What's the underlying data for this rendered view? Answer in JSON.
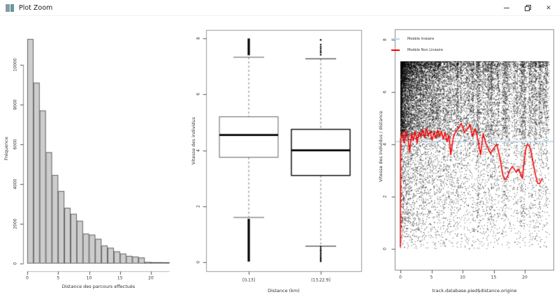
{
  "window": {
    "title": "Plot Zoom",
    "controls": {
      "minimize_label": "",
      "restore_label": "",
      "close_label": "✕"
    }
  },
  "chart_data": [
    {
      "type": "bar",
      "subtype": "histogram",
      "xlabel": "Distance des parcours effectués",
      "ylabel": "Fréquence",
      "bin_start": 0,
      "bin_width": 1,
      "values": [
        11300,
        9100,
        7700,
        5600,
        4450,
        3650,
        2800,
        2500,
        2150,
        1500,
        1450,
        1240,
        900,
        790,
        610,
        500,
        380,
        350,
        300,
        80,
        70,
        70,
        60
      ],
      "xticks": [
        0,
        5,
        10,
        15,
        20
      ],
      "yticks": [
        0,
        2000,
        4000,
        6000,
        8000,
        10000
      ],
      "xlim": [
        0,
        23
      ],
      "ylim": [
        0,
        11300
      ],
      "bar_fill": "#cdcdcd",
      "bar_stroke": "#4a4a4a",
      "grid": false
    },
    {
      "type": "boxplot",
      "xlabel": "Distance (km)",
      "ylabel": "Vitesse des individus",
      "yticks": [
        0,
        2,
        4,
        6,
        8
      ],
      "ylim": [
        0,
        8
      ],
      "groups": [
        {
          "label": "[0,13]",
          "q1": 3.75,
          "median": 4.55,
          "q3": 5.2,
          "whisker_low": 1.6,
          "whisker_high": 7.33,
          "outlier_band_high": [
            7.4,
            8.0
          ],
          "outlier_band_low": [
            0.02,
            1.55
          ],
          "box_color": "#6e6e6e"
        },
        {
          "label": "(13,22.9]",
          "q1": 3.1,
          "median": 4.0,
          "q3": 4.75,
          "whisker_low": 0.57,
          "whisker_high": 7.27,
          "outliers_high": [
            7.42,
            7.5,
            7.56,
            7.63,
            7.7,
            7.78,
            7.95
          ],
          "outliers_low": [
            0.03,
            0.08,
            0.13,
            0.18,
            0.24,
            0.3,
            0.36,
            0.42,
            0.48,
            0.55
          ],
          "box_color": "#000000"
        }
      ],
      "median_color": "#000000",
      "whisker_style": "dashed",
      "grid": false
    },
    {
      "type": "scatter",
      "xlabel": "track.database.pied$distance.origine",
      "ylabel": "Vitesse des individus / distance",
      "xticks": [
        0,
        5,
        10,
        15,
        20
      ],
      "yticks": [
        0,
        2,
        4,
        6,
        8
      ],
      "xlim": [
        0,
        23.5
      ],
      "ylim": [
        0,
        8
      ],
      "points": {
        "color": "#000000",
        "approx_count": 19000,
        "x_range": [
          0,
          23.5
        ],
        "y_range": [
          0,
          7.17
        ],
        "distribution": "very dense cloud at x 0-8 between y 4-7, thinning to striped vertical columns toward x 23",
        "seed": 7,
        "n_core": 11000,
        "n_spread": 7600
      },
      "linear_model": {
        "label": "Modèle linéaire",
        "color": "#b5d7e8",
        "y": 4.1
      },
      "loess": {
        "label": "Modèle Non Linéaire",
        "color": "#ff0000",
        "points": [
          [
            0,
            0.08
          ],
          [
            0.03,
            4.2
          ],
          [
            0.3,
            4.45
          ],
          [
            0.6,
            4.05
          ],
          [
            0.9,
            4.5
          ],
          [
            1.2,
            4.3
          ],
          [
            1.5,
            3.7
          ],
          [
            1.8,
            4.4
          ],
          [
            2.1,
            4.15
          ],
          [
            2.4,
            4.5
          ],
          [
            2.7,
            4.05
          ],
          [
            3,
            4.45
          ],
          [
            3.3,
            4.3
          ],
          [
            3.6,
            4.55
          ],
          [
            3.9,
            4.25
          ],
          [
            4.2,
            4.6
          ],
          [
            4.5,
            4.35
          ],
          [
            4.8,
            4.5
          ],
          [
            5.1,
            4.15
          ],
          [
            5.4,
            4.45
          ],
          [
            5.7,
            4.25
          ],
          [
            6,
            4.55
          ],
          [
            6.3,
            4.3
          ],
          [
            6.6,
            4.5
          ],
          [
            6.9,
            4.2
          ],
          [
            7.2,
            4.45
          ],
          [
            7.5,
            4.1
          ],
          [
            7.8,
            4.35
          ],
          [
            8.1,
            3.6
          ],
          [
            8.5,
            4.25
          ],
          [
            8.9,
            4.5
          ],
          [
            9.3,
            4.6
          ],
          [
            9.8,
            4.8
          ],
          [
            10.3,
            4.45
          ],
          [
            10.8,
            4.6
          ],
          [
            11.2,
            4.75
          ],
          [
            11.6,
            4.3
          ],
          [
            12,
            4.6
          ],
          [
            12.4,
            4.25
          ],
          [
            12.9,
            3.6
          ],
          [
            13.3,
            4.4
          ],
          [
            13.8,
            4.0
          ],
          [
            14.5,
            3.65
          ],
          [
            15,
            3.85
          ],
          [
            15.5,
            4.0
          ],
          [
            16,
            3.5
          ],
          [
            16.5,
            2.8
          ],
          [
            16.9,
            2.65
          ],
          [
            17.2,
            2.75
          ],
          [
            17.6,
            3.0
          ],
          [
            18,
            3.15
          ],
          [
            18.6,
            2.95
          ],
          [
            19,
            3.05
          ],
          [
            19.6,
            2.7
          ],
          [
            19.9,
            3.3
          ],
          [
            20.15,
            3.8
          ],
          [
            20.4,
            4.0
          ],
          [
            20.7,
            3.95
          ],
          [
            21,
            3.75
          ],
          [
            21.5,
            3.1
          ],
          [
            21.8,
            2.75
          ],
          [
            22.1,
            2.5
          ],
          [
            22.4,
            2.5
          ],
          [
            22.8,
            2.7
          ]
        ]
      },
      "legend_position": "top-left",
      "grid": false
    }
  ]
}
